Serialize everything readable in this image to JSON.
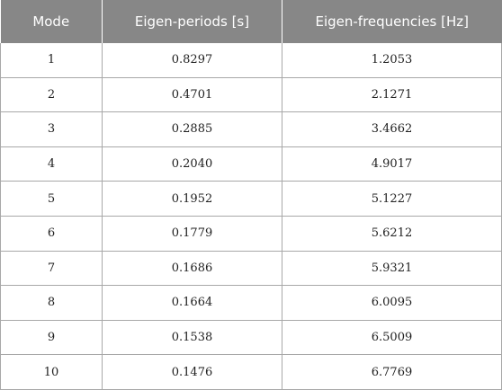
{
  "table": {
    "headers": [
      "Mode",
      "Eigen-periods [s]",
      "Eigen-frequencies [Hz]"
    ],
    "rows": [
      [
        "1",
        "0.8297",
        "1.2053"
      ],
      [
        "2",
        "0.4701",
        "2.1271"
      ],
      [
        "3",
        "0.2885",
        "3.4662"
      ],
      [
        "4",
        "0.2040",
        "4.9017"
      ],
      [
        "5",
        "0.1952",
        "5.1227"
      ],
      [
        "6",
        "0.1779",
        "5.6212"
      ],
      [
        "7",
        "0.1686",
        "5.9321"
      ],
      [
        "8",
        "0.1664",
        "6.0095"
      ],
      [
        "9",
        "0.1538",
        "6.5009"
      ],
      [
        "10",
        "0.1476",
        "6.7769"
      ]
    ]
  },
  "colors": {
    "header_background": "#878787",
    "header_text": "#ffffff",
    "grid_line": "#a8a8a8"
  }
}
